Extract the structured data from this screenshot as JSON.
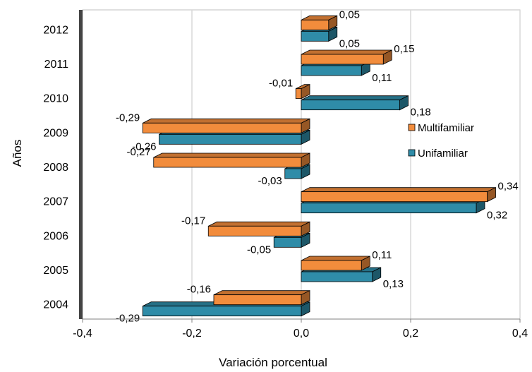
{
  "chart_data": {
    "type": "bar",
    "orientation": "horizontal",
    "three_d": true,
    "categories": [
      "2012",
      "2011",
      "2010",
      "2009",
      "2008",
      "2007",
      "2006",
      "2005",
      "2004"
    ],
    "series": [
      {
        "name": "Multifamiliar",
        "color": "#F28C3C",
        "values": [
          0.05,
          0.15,
          -0.01,
          -0.29,
          -0.27,
          0.34,
          -0.17,
          0.11,
          -0.16
        ],
        "labels": [
          "0,05",
          "0,15",
          "-0,01",
          "-0,29",
          "-0,27",
          "0,34",
          "-0,17",
          "0,11",
          "-0,16"
        ]
      },
      {
        "name": "Unifamiliar",
        "color": "#2F8CA8",
        "values": [
          0.05,
          0.11,
          0.18,
          -0.26,
          -0.03,
          0.32,
          -0.05,
          0.13,
          -0.29
        ],
        "labels": [
          "0,05",
          "0,11",
          "0,18",
          "-0,26",
          "-0,03",
          "0,32",
          "-0,05",
          "0,13",
          "-0,29"
        ]
      }
    ],
    "xlim": [
      -0.4,
      0.4
    ],
    "xticks": [
      -0.4,
      -0.2,
      0.0,
      0.2,
      0.4
    ],
    "xtick_labels": [
      "-0,4",
      "-0,2",
      "0,0",
      "0,2",
      "0,4"
    ],
    "xlabel": "Variación porcentual",
    "ylabel": "Años",
    "grid": true,
    "legend_position": "right"
  }
}
